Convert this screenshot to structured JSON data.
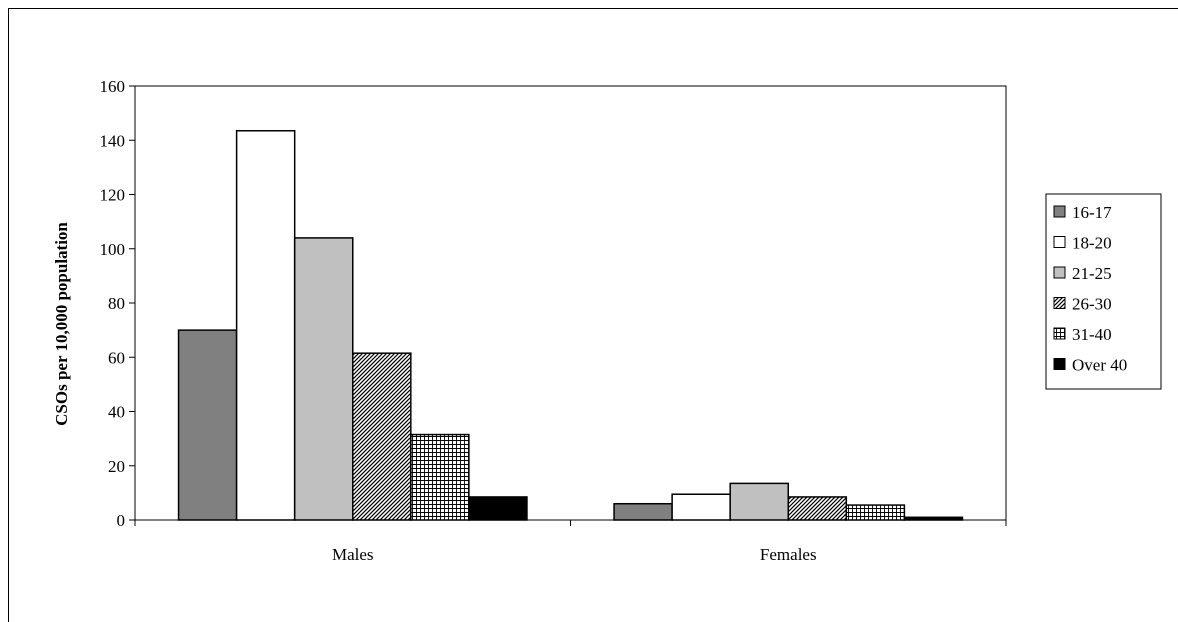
{
  "chart_data": {
    "type": "bar",
    "title": "",
    "xlabel": "",
    "ylabel": "CSOs per 10,000 population",
    "categories": [
      "Males",
      "Females"
    ],
    "ylim": [
      0,
      160
    ],
    "yticks": [
      0,
      20,
      40,
      60,
      80,
      100,
      120,
      140,
      160
    ],
    "grid": false,
    "legend_position": "right",
    "series": [
      {
        "name": "16-17",
        "values": [
          70,
          6
        ],
        "fill": "#808080",
        "pattern": "solid"
      },
      {
        "name": "18-20",
        "values": [
          143.5,
          9.5
        ],
        "fill": "#ffffff",
        "pattern": "solid"
      },
      {
        "name": "21-25",
        "values": [
          104,
          13.5
        ],
        "fill": "#c0c0c0",
        "pattern": "solid"
      },
      {
        "name": "26-30",
        "values": [
          61.5,
          8.5
        ],
        "fill": "#000000",
        "pattern": "diagonal"
      },
      {
        "name": "31-40",
        "values": [
          31.5,
          5.5
        ],
        "fill": "#000000",
        "pattern": "grid"
      },
      {
        "name": "Over 40",
        "values": [
          8.5,
          1
        ],
        "fill": "#000000",
        "pattern": "solid"
      }
    ]
  }
}
